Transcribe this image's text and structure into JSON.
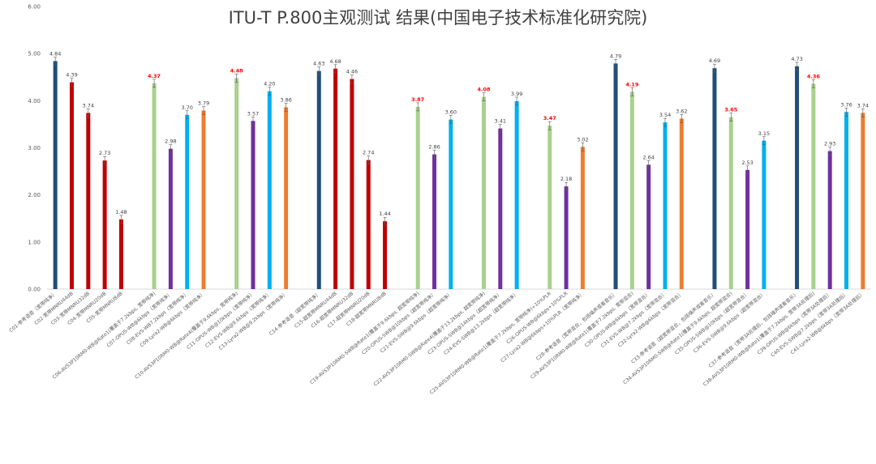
{
  "chart_data": {
    "type": "bar",
    "title": "ITU-T P.800主观测试 结果(中国电子技术标准化研究院)",
    "ylim": [
      0,
      6
    ],
    "yticks": [
      "0.00",
      "1.00",
      "2.00",
      "3.00",
      "4.00",
      "5.00",
      "6.00"
    ],
    "grid": false,
    "legend": "none",
    "colors": {
      "ref": "#1f4e79",
      "mnru": "#c00000",
      "avs": "#a9d18e",
      "opus": "#7030a0",
      "evs": "#00b0f0",
      "lyra": "#ed7d31"
    },
    "highlight_color": "#ff0000",
    "points": [
      {
        "label": "C01-参考语音（宽带纯净）",
        "value": 4.84,
        "value_label": "4.84",
        "group": "ref"
      },
      {
        "label": "C02-宽带MNRU44dB",
        "value": 4.39,
        "value_label": "4.39",
        "group": "mnru"
      },
      {
        "label": "C03-宽带MNRU32dB",
        "value": 3.74,
        "value_label": "3.74",
        "group": "mnru"
      },
      {
        "label": "C04-宽带MNRU20dB",
        "value": 2.73,
        "value_label": "2.73",
        "group": "mnru"
      },
      {
        "label": "C05-宽带MNRU8dB",
        "value": 1.48,
        "value_label": "1.48",
        "group": "mnru"
      },
      {
        "gap": true
      },
      {
        "label": "C06-AVS3P10RM0-WB@Rate1(覆盖于7.2kbps, 宽带纯净)",
        "value": 4.37,
        "value_label": "4.37",
        "group": "avs",
        "highlight": true
      },
      {
        "label": "C07-OPUS-WB@6kbps（宽带纯净）",
        "value": 2.98,
        "value_label": "2.98",
        "group": "opus"
      },
      {
        "label": "C08-EVS-WB7.2kbps（宽带纯净）",
        "value": 3.7,
        "value_label": "3.70",
        "group": "evs"
      },
      {
        "label": "C09-Lyra2-WB@6kbps（宽带纯净）",
        "value": 3.79,
        "value_label": "3.79",
        "group": "lyra"
      },
      {
        "gap": true
      },
      {
        "label": "C10-AVS3P10RM0-WB@Rate4(覆盖于9.6kbps, 宽带纯净)",
        "value": 4.48,
        "value_label": "4.48",
        "group": "avs",
        "highlight": true
      },
      {
        "label": "C11-OPUS-WB@10kbps（宽带纯净）",
        "value": 3.57,
        "value_label": "3.57",
        "group": "opus"
      },
      {
        "label": "C12-EVS-WB@9.6kbps（宽带纯净）",
        "value": 4.2,
        "value_label": "4.20",
        "group": "evs"
      },
      {
        "label": "C13-Lyra2-WB@9.2kbps（宽带纯净）",
        "value": 3.86,
        "value_label": "3.86",
        "group": "lyra"
      },
      {
        "gap": true
      },
      {
        "label": "C14-参考语音（超宽带纯净）",
        "value": 4.63,
        "value_label": "4.63",
        "group": "ref"
      },
      {
        "label": "C15-超宽带MNRU44dB",
        "value": 4.68,
        "value_label": "4.68",
        "group": "mnru"
      },
      {
        "label": "C16-超宽带MNRU32dB",
        "value": 4.46,
        "value_label": "4.46",
        "group": "mnru"
      },
      {
        "label": "C17-超宽带MNRU20dB",
        "value": 2.74,
        "value_label": "2.74",
        "group": "mnru"
      },
      {
        "label": "C18-超宽带MNRU8dB",
        "value": 1.44,
        "value_label": "1.44",
        "group": "mnru"
      },
      {
        "gap": true
      },
      {
        "label": "C19-AVS3P10RM0-SWB@Rate1(覆盖于9.6kbps, 超宽带纯净)",
        "value": 3.87,
        "value_label": "3.87",
        "group": "avs",
        "highlight": true
      },
      {
        "label": "C20-OPUS-SWB@10kbps（超宽带纯净）",
        "value": 2.86,
        "value_label": "2.86",
        "group": "opus"
      },
      {
        "label": "C21-EVS-SWB@9.6kbps（超宽带纯净）",
        "value": 3.6,
        "value_label": "3.60",
        "group": "evs"
      },
      {
        "gap": true
      },
      {
        "label": "C22-AVS3P10RM0-SWB@Rate4(覆盖于13.2kbps, 超宽带纯净)",
        "value": 4.08,
        "value_label": "4.08",
        "group": "avs",
        "highlight": true
      },
      {
        "label": "C23-OPUS-SWB@14kbps（超宽带纯净）",
        "value": 3.41,
        "value_label": "3.41",
        "group": "opus"
      },
      {
        "label": "C24-EVS-SWB@13.2kbps（超宽带纯净）",
        "value": 3.99,
        "value_label": "3.99",
        "group": "evs"
      },
      {
        "gap": true
      },
      {
        "label": "C25-AVS3P10RM0-WB@Rate1(覆盖于7.2kbps, 宽带纯净)+10%PLR",
        "value": 3.47,
        "value_label": "3.47",
        "group": "avs",
        "highlight": true
      },
      {
        "label": "C26-OPUS-WB@6kbps+10%PLR",
        "value": 2.18,
        "value_label": "2.18",
        "group": "opus"
      },
      {
        "label": "C27-Lyra2-WB@6kbps+10%PLR（宽带纯净）",
        "value": 3.02,
        "value_label": "3.02",
        "group": "lyra"
      },
      {
        "gap": true
      },
      {
        "label": "C28-参考语音（宽带混合，包括噪声或者音乐）",
        "value": 4.79,
        "value_label": "4.79",
        "group": "ref"
      },
      {
        "label": "C29-AVS3P10RM0-WB@Rate1(覆盖于7.2kbps, 宽带混合)",
        "value": 4.19,
        "value_label": "4.19",
        "group": "avs",
        "highlight": true
      },
      {
        "label": "C30-OPUS-WB@6kbps（宽带混合）",
        "value": 2.64,
        "value_label": "2.64",
        "group": "opus"
      },
      {
        "label": "C31-EVS-WB@7.2kbps（宽带混合）",
        "value": 3.54,
        "value_label": "3.54",
        "group": "evs"
      },
      {
        "label": "C32-Lyra2-WB@6kbps（宽带混合）",
        "value": 3.62,
        "value_label": "3.62",
        "group": "lyra"
      },
      {
        "gap": true
      },
      {
        "label": "C33-参考语音（超宽带混合，包括噪声或者音乐）",
        "value": 4.69,
        "value_label": "4.69",
        "group": "ref"
      },
      {
        "label": "C34-AVS3P10RM0-SWB@Rate1(覆盖于9.6kbps, 超宽带混合)",
        "value": 3.65,
        "value_label": "3.65",
        "group": "avs",
        "highlight": true
      },
      {
        "label": "C35-OPUS-SWB@10kbps（超宽带混合）",
        "value": 2.53,
        "value_label": "2.53",
        "group": "opus"
      },
      {
        "label": "C36-EVS-SWB@9.6kbps（超宽带混合）",
        "value": 3.15,
        "value_label": "3.15",
        "group": "evs"
      },
      {
        "gap": true
      },
      {
        "label": "C37-参考语音（宽带3A处理后，包括噪声或者音乐）",
        "value": 4.73,
        "value_label": "4.73",
        "group": "ref"
      },
      {
        "label": "C38-AVS3P10RM0-WB@Rate1(覆盖于7.2kbps, 宽带3A处理后)",
        "value": 4.36,
        "value_label": "4.36",
        "group": "avs",
        "highlight": true
      },
      {
        "label": "C39-OPUS-WB@6kbps（宽带3A处理后）",
        "value": 2.93,
        "value_label": "2.93",
        "group": "opus"
      },
      {
        "label": "C40-EVS-SWB@7.2kbps（宽带3A处理后）",
        "value": 3.76,
        "value_label": "3.76",
        "group": "evs"
      },
      {
        "label": "C41-Lyra2-WB@6kbps（宽带3A处理后）",
        "value": 3.74,
        "value_label": "3.74",
        "group": "lyra"
      }
    ]
  }
}
